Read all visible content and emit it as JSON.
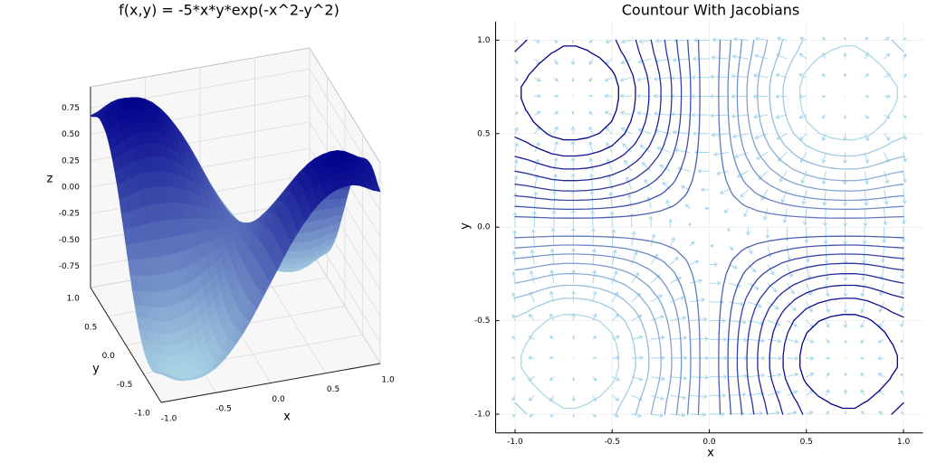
{
  "chart_data": [
    {
      "type": "surface",
      "title": "f(x,y) = -5*x*y*exp(-x^2-y^2)",
      "xlabel": "x",
      "ylabel": "y",
      "zlabel": "z",
      "x": [
        -1,
        -0.75,
        -0.5,
        -0.25,
        0,
        0.25,
        0.5,
        0.75,
        1
      ],
      "y": [
        -1,
        -0.75,
        -0.5,
        -0.25,
        0,
        0.25,
        0.5,
        0.75,
        1
      ],
      "z": [
        [
          -0.677,
          -0.786,
          -0.716,
          -0.432,
          0,
          0.432,
          0.716,
          0.786,
          0.677
        ],
        [
          -0.786,
          -0.913,
          -0.832,
          -0.502,
          0,
          0.502,
          0.832,
          0.913,
          0.786
        ],
        [
          -0.716,
          -0.832,
          -0.758,
          -0.457,
          0,
          0.457,
          0.758,
          0.832,
          0.716
        ],
        [
          -0.432,
          -0.502,
          -0.457,
          -0.276,
          0,
          0.276,
          0.457,
          0.502,
          0.432
        ],
        [
          0,
          0,
          0,
          0,
          0,
          0,
          0,
          0,
          0
        ],
        [
          0.432,
          0.502,
          0.457,
          0.276,
          0,
          -0.276,
          -0.457,
          -0.502,
          -0.432
        ],
        [
          0.716,
          0.832,
          0.758,
          0.457,
          0,
          -0.457,
          -0.758,
          -0.832,
          -0.716
        ],
        [
          0.786,
          0.913,
          0.832,
          0.502,
          0,
          -0.502,
          -0.832,
          -0.913,
          -0.786
        ],
        [
          0.677,
          0.786,
          0.716,
          0.432,
          0,
          -0.432,
          -0.716,
          -0.786,
          -0.677
        ]
      ],
      "xlim": [
        -1,
        1
      ],
      "ylim": [
        -1,
        1
      ],
      "zlim": [
        -0.95,
        0.95
      ],
      "xticks": [
        {
          "value": -1,
          "label": "-1.0"
        },
        -0.5,
        {
          "value": 0,
          "label": "0.0"
        },
        0.5,
        {
          "value": 1,
          "label": "1.0"
        }
      ],
      "yticks": [
        {
          "value": -1,
          "label": "-1.0"
        },
        -0.5,
        {
          "value": 0,
          "label": "0.0"
        },
        0.5,
        {
          "value": 1,
          "label": "1.0"
        }
      ],
      "zticks": [
        -0.75,
        {
          "value": -0.5,
          "label": "-0.50"
        },
        -0.25,
        {
          "value": 0,
          "label": "0.00"
        },
        0.25,
        {
          "value": 0.5,
          "label": "0.50"
        },
        0.75
      ],
      "grid": true,
      "colormap": [
        "#add8e6",
        "#00008b"
      ]
    },
    {
      "type": "contour",
      "title": "Countour With Jacobians",
      "xlabel": "x",
      "ylabel": "y",
      "x": [
        -1,
        -0.75,
        -0.5,
        -0.25,
        0,
        0.25,
        0.5,
        0.75,
        1
      ],
      "y": [
        -1,
        -0.75,
        -0.5,
        -0.25,
        0,
        0.25,
        0.5,
        0.75,
        1
      ],
      "z": [
        [
          -0.677,
          -0.786,
          -0.716,
          -0.432,
          0,
          0.432,
          0.716,
          0.786,
          0.677
        ],
        [
          -0.786,
          -0.913,
          -0.832,
          -0.502,
          0,
          0.502,
          0.832,
          0.913,
          0.786
        ],
        [
          -0.716,
          -0.832,
          -0.758,
          -0.457,
          0,
          0.457,
          0.758,
          0.832,
          0.716
        ],
        [
          -0.432,
          -0.502,
          -0.457,
          -0.276,
          0,
          0.276,
          0.457,
          0.502,
          0.432
        ],
        [
          0,
          0,
          0,
          0,
          0,
          0,
          0,
          0,
          0
        ],
        [
          0.432,
          0.502,
          0.457,
          0.276,
          0,
          -0.276,
          -0.457,
          -0.502,
          -0.432
        ],
        [
          0.716,
          0.832,
          0.758,
          0.457,
          0,
          -0.457,
          -0.758,
          -0.832,
          -0.716
        ],
        [
          0.786,
          0.913,
          0.832,
          0.502,
          0,
          -0.502,
          -0.832,
          -0.913,
          -0.786
        ],
        [
          0.677,
          0.786,
          0.716,
          0.432,
          0,
          -0.432,
          -0.716,
          -0.786,
          -0.677
        ]
      ],
      "levels": [
        -0.8,
        -0.7,
        -0.6,
        -0.5,
        -0.4,
        -0.3,
        -0.2,
        -0.1,
        0.1,
        0.2,
        0.3,
        0.4,
        0.5,
        0.6,
        0.7,
        0.8
      ],
      "xlim": [
        -1.1,
        1.1
      ],
      "ylim": [
        -1.1,
        1.1
      ],
      "xticks": [
        {
          "value": -1,
          "label": "-1.0"
        },
        -0.5,
        {
          "value": 0,
          "label": "0.0"
        },
        0.5,
        {
          "value": 1,
          "label": "1.0"
        }
      ],
      "yticks": [
        {
          "value": -1,
          "label": "-1.0"
        },
        -0.5,
        {
          "value": 0,
          "label": "0.0"
        },
        0.5,
        {
          "value": 1,
          "label": "1.0"
        }
      ],
      "grid": true,
      "quiver": true,
      "quiver_color": "#9fd3ea",
      "colormap": [
        "#add8e6",
        "#00008b"
      ]
    }
  ]
}
